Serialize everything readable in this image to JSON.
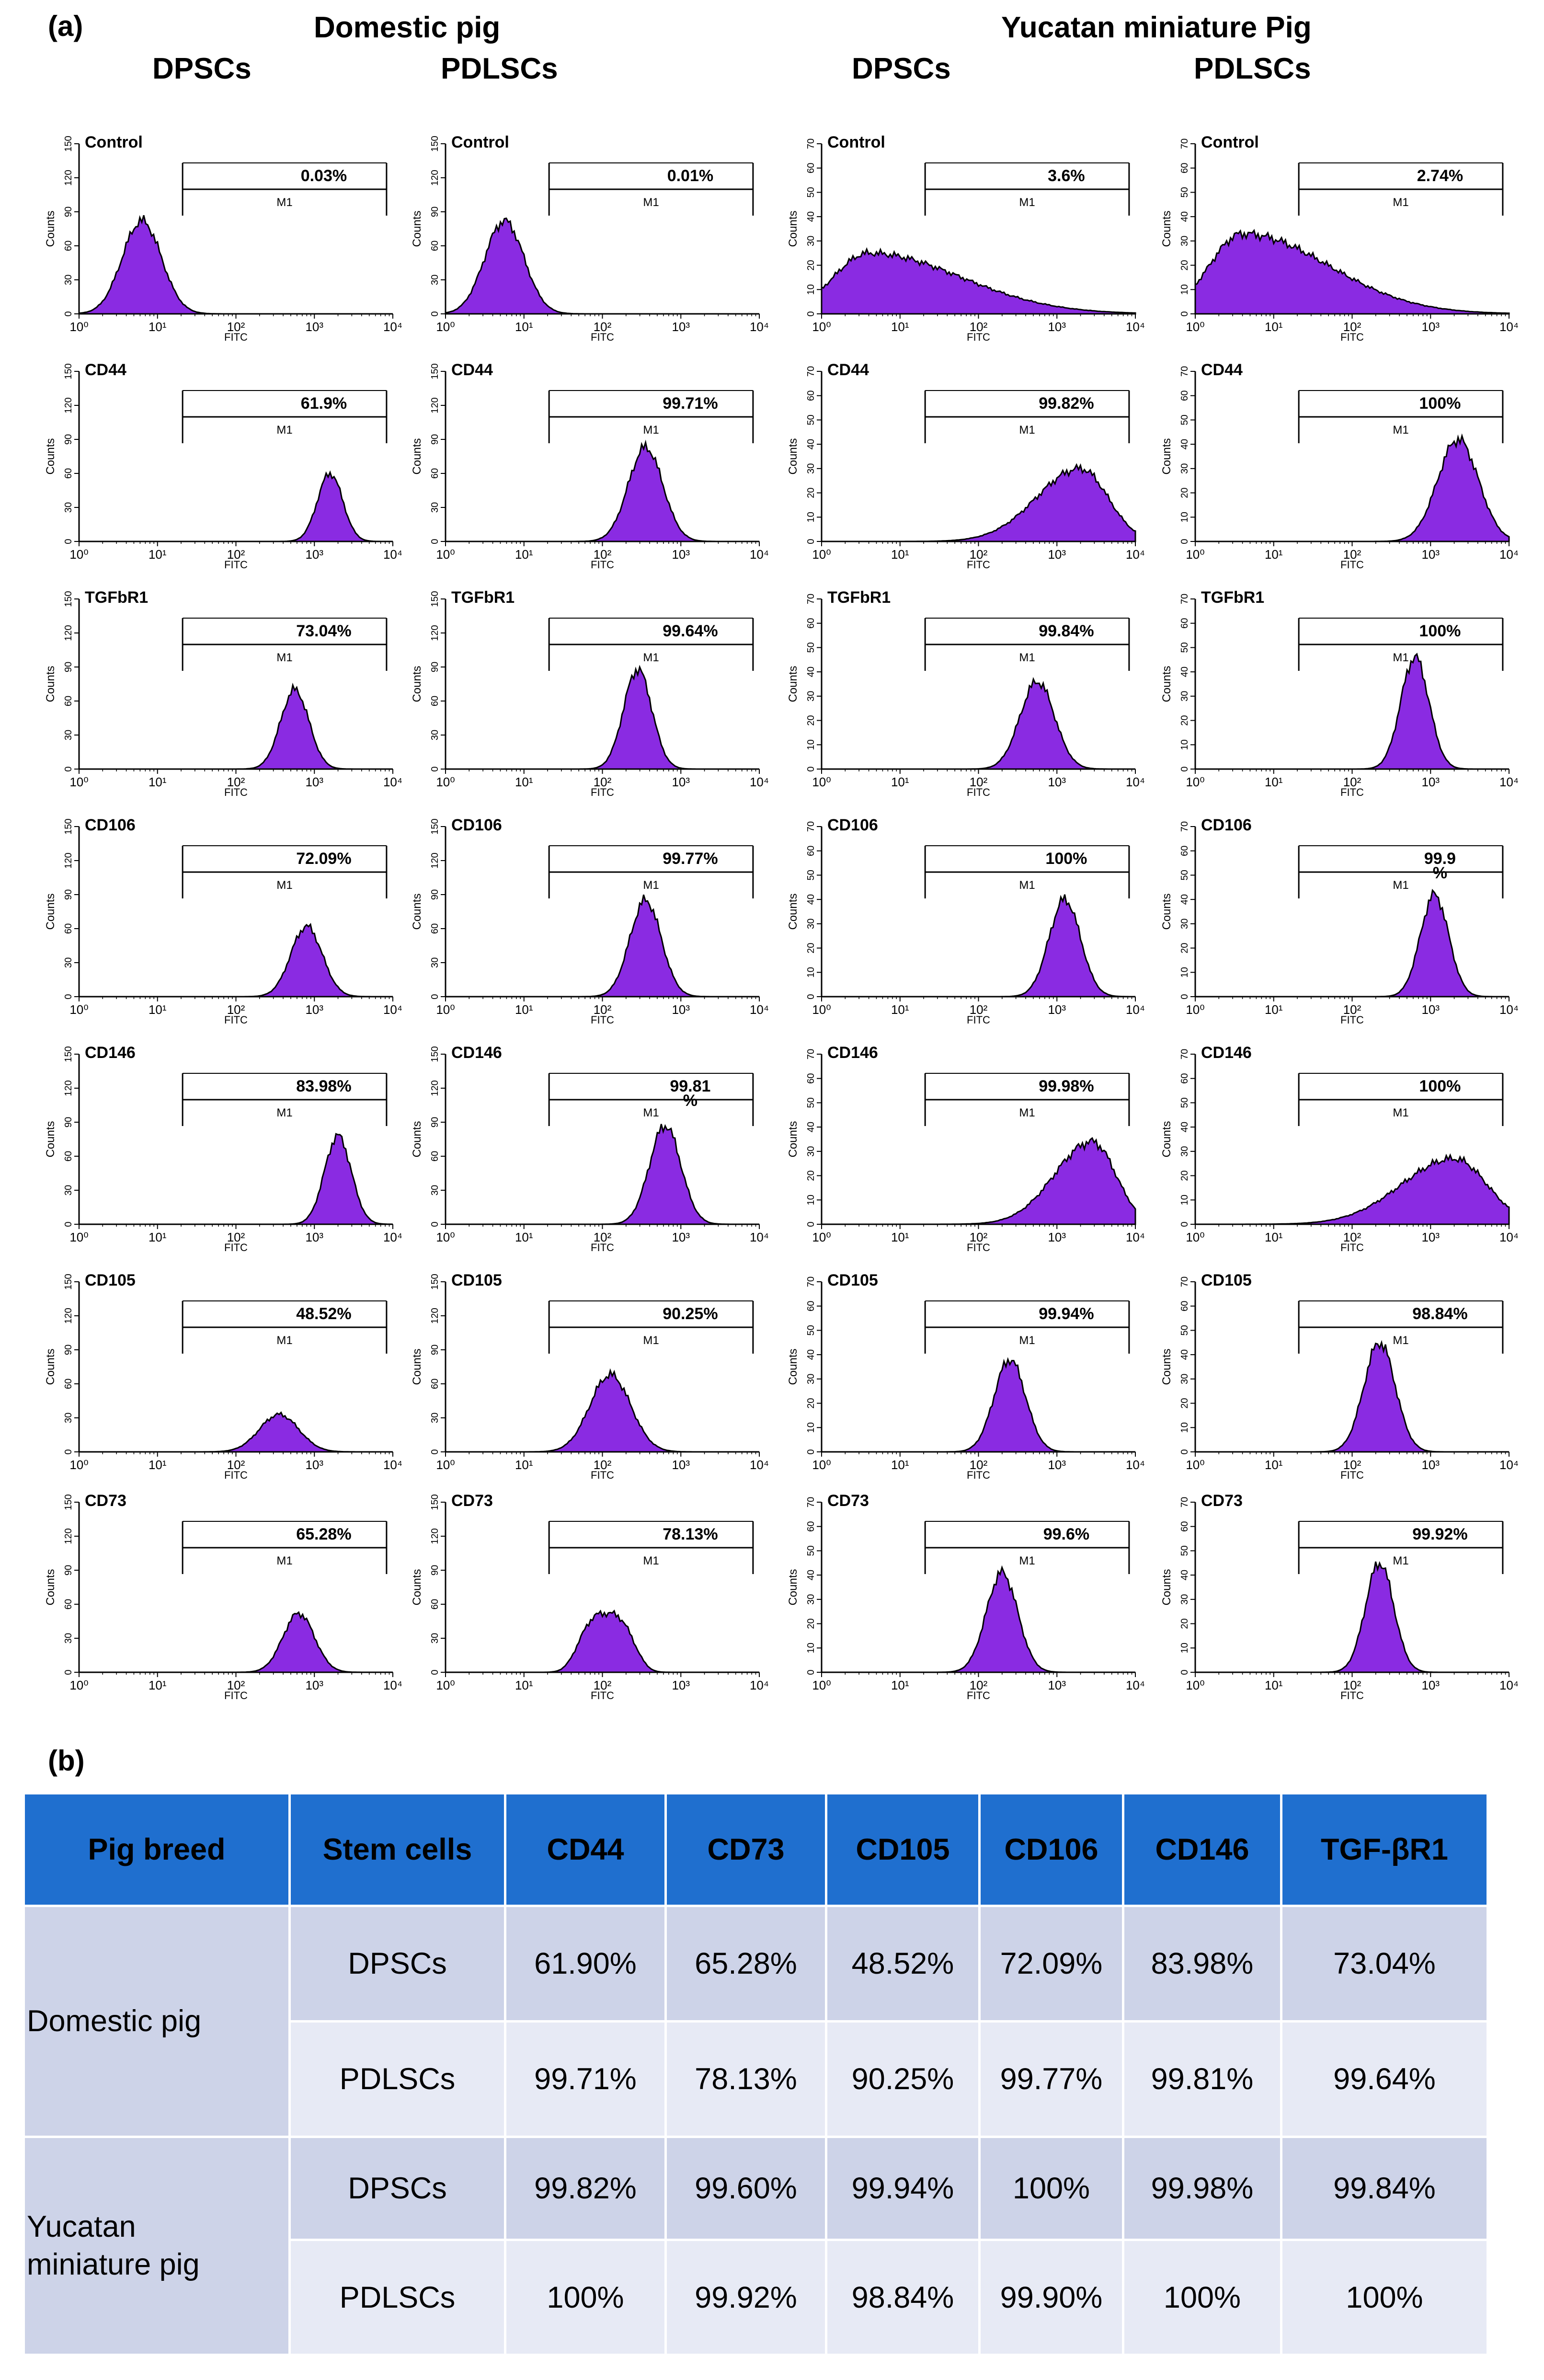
{
  "panel_a_label": "(a)",
  "panel_b_label": "(b)",
  "breeds": [
    "Domestic pig",
    "Yucatan miniature Pig"
  ],
  "cell_types": [
    "DPSCs",
    "PDLSCs",
    "DPSCs",
    "PDLSCs"
  ],
  "colors": {
    "fill": "#8a2be2",
    "line": "#000000",
    "header_bg": "#1f6fcf",
    "row_dark": "#cdd3e8",
    "row_light": "#e7eaf5"
  },
  "chart_data": {
    "type": "histogram-grid",
    "xlabel": "FITC",
    "ylabel": "Counts",
    "gate_label": "M1",
    "x_ticks": [
      "10⁰",
      "10¹",
      "10²",
      "10³",
      "10⁴"
    ],
    "columns": [
      {
        "breed": "Domestic pig",
        "cells": "DPSCs",
        "yticks": [
          "0",
          "30",
          "60",
          "90",
          "120",
          "150"
        ],
        "ymax": 150
      },
      {
        "breed": "Domestic pig",
        "cells": "PDLSCs",
        "yticks": [
          "0",
          "30",
          "60",
          "90",
          "120",
          "150"
        ],
        "ymax": 150
      },
      {
        "breed": "Yucatan miniature Pig",
        "cells": "DPSCs",
        "yticks": [
          "0",
          "10",
          "20",
          "30",
          "40",
          "50",
          "60",
          "70"
        ],
        "ymax": 70
      },
      {
        "breed": "Yucatan miniature Pig",
        "cells": "PDLSCs",
        "yticks": [
          "0",
          "10",
          "20",
          "30",
          "40",
          "50",
          "60",
          "70"
        ],
        "ymax": 70
      }
    ],
    "rows": [
      {
        "marker": "Control",
        "panels": [
          {
            "pct": "0.03%",
            "peak": 0.8,
            "height": 82,
            "width": 0.25,
            "shape": "normal"
          },
          {
            "pct": "0.01%",
            "peak": 0.75,
            "height": 82,
            "width": 0.25,
            "shape": "normal"
          },
          {
            "pct": "3.6%",
            "peak": 0.6,
            "height": 25,
            "width": 0.45,
            "shape": "skew"
          },
          {
            "pct": "2.74%",
            "peak": 0.6,
            "height": 33,
            "width": 0.42,
            "shape": "skew"
          }
        ]
      },
      {
        "marker": "CD44",
        "panels": [
          {
            "pct": "61.9%",
            "peak": 3.2,
            "height": 60,
            "width": 0.16,
            "shape": "normal"
          },
          {
            "pct": "99.71%",
            "peak": 2.55,
            "height": 83,
            "width": 0.22,
            "shape": "normal"
          },
          {
            "pct": "99.82%",
            "peak": 3.3,
            "height": 30,
            "width": 0.35,
            "shape": "wide"
          },
          {
            "pct": "100%",
            "peak": 3.35,
            "height": 42,
            "width": 0.26,
            "shape": "normal"
          }
        ]
      },
      {
        "marker": "TGFbR1",
        "panels": [
          {
            "pct": "73.04%",
            "peak": 2.75,
            "height": 70,
            "width": 0.18,
            "shape": "normal"
          },
          {
            "pct": "99.64%",
            "peak": 2.45,
            "height": 88,
            "width": 0.18,
            "shape": "normal"
          },
          {
            "pct": "99.84%",
            "peak": 2.75,
            "height": 36,
            "width": 0.22,
            "shape": "normal"
          },
          {
            "pct": "100%",
            "peak": 2.8,
            "height": 46,
            "width": 0.18,
            "shape": "normal"
          }
        ]
      },
      {
        "marker": "CD106",
        "panels": [
          {
            "pct": "72.09%",
            "peak": 2.9,
            "height": 62,
            "width": 0.2,
            "shape": "normal"
          },
          {
            "pct": "99.77%",
            "peak": 2.55,
            "height": 85,
            "width": 0.2,
            "shape": "normal"
          },
          {
            "pct": "100%",
            "peak": 3.1,
            "height": 40,
            "width": 0.2,
            "shape": "normal"
          },
          {
            "pct": "99.9\n%",
            "peak": 3.05,
            "height": 42,
            "width": 0.18,
            "shape": "normal"
          }
        ]
      },
      {
        "marker": "CD146",
        "panels": [
          {
            "pct": "83.98%",
            "peak": 3.3,
            "height": 78,
            "width": 0.17,
            "shape": "normal"
          },
          {
            "pct": "99.81\n%",
            "peak": 2.8,
            "height": 87,
            "width": 0.2,
            "shape": "normal"
          },
          {
            "pct": "99.98%",
            "peak": 3.45,
            "height": 34,
            "width": 0.3,
            "shape": "wide"
          },
          {
            "pct": "100%",
            "peak": 3.3,
            "height": 27,
            "width": 0.42,
            "shape": "wide"
          }
        ]
      },
      {
        "marker": "CD105",
        "panels": [
          {
            "pct": "48.52%",
            "peak": 2.55,
            "height": 33,
            "width": 0.25,
            "shape": "normal"
          },
          {
            "pct": "90.25%",
            "peak": 2.1,
            "height": 68,
            "width": 0.26,
            "shape": "normal"
          },
          {
            "pct": "99.94%",
            "peak": 2.4,
            "height": 38,
            "width": 0.2,
            "shape": "normal"
          },
          {
            "pct": "98.84%",
            "peak": 2.35,
            "height": 45,
            "width": 0.2,
            "shape": "normal"
          }
        ]
      },
      {
        "marker": "CD73",
        "panels": [
          {
            "pct": "65.28%",
            "peak": 2.8,
            "height": 52,
            "width": 0.2,
            "shape": "normal"
          },
          {
            "pct": "78.13%",
            "peak": 2.05,
            "height": 52,
            "width": 0.32,
            "shape": "flat"
          },
          {
            "pct": "99.6%",
            "peak": 2.3,
            "height": 41,
            "width": 0.2,
            "shape": "normal"
          },
          {
            "pct": "99.92%",
            "peak": 2.35,
            "height": 45,
            "width": 0.18,
            "shape": "normal"
          }
        ]
      }
    ]
  },
  "table": {
    "headers": [
      "Pig breed",
      "Stem cells",
      "CD44",
      "CD73",
      "CD105",
      "CD106",
      "CD146",
      "TGF-βR1"
    ],
    "groups": [
      {
        "breed": "Domestic pig",
        "rows": [
          {
            "cells": "DPSCs",
            "values": [
              "61.90%",
              "65.28%",
              "48.52%",
              "72.09%",
              "83.98%",
              "73.04%"
            ]
          },
          {
            "cells": "PDLSCs",
            "values": [
              "99.71%",
              "78.13%",
              "90.25%",
              "99.77%",
              "99.81%",
              "99.64%"
            ]
          }
        ]
      },
      {
        "breed": "Yucatan\nminiature pig",
        "rows": [
          {
            "cells": "DPSCs",
            "values": [
              "99.82%",
              "99.60%",
              "99.94%",
              "100%",
              "99.98%",
              "99.84%"
            ]
          },
          {
            "cells": "PDLSCs",
            "values": [
              "100%",
              "99.92%",
              "98.84%",
              "99.90%",
              "100%",
              "100%"
            ]
          }
        ]
      }
    ]
  }
}
